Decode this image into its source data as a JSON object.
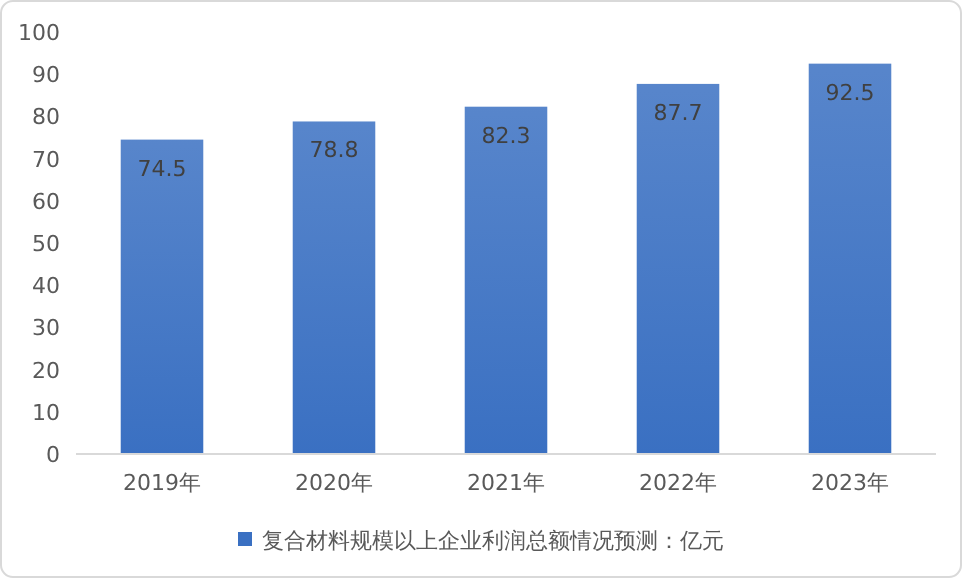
{
  "chart_data": {
    "type": "bar",
    "categories": [
      "2019年",
      "2020年",
      "2021年",
      "2022年",
      "2023年"
    ],
    "series": [
      {
        "name": "复合材料规模以上企业利润总额情况预测：亿元",
        "color": "#3a70c2",
        "values": [
          74.5,
          78.8,
          82.3,
          87.7,
          92.5
        ]
      }
    ],
    "ylim": [
      0,
      100
    ],
    "yticks": [
      0,
      10,
      20,
      30,
      40,
      50,
      60,
      70,
      80,
      90,
      100
    ],
    "data_labels": true,
    "legend": "bottom",
    "grid": false
  }
}
